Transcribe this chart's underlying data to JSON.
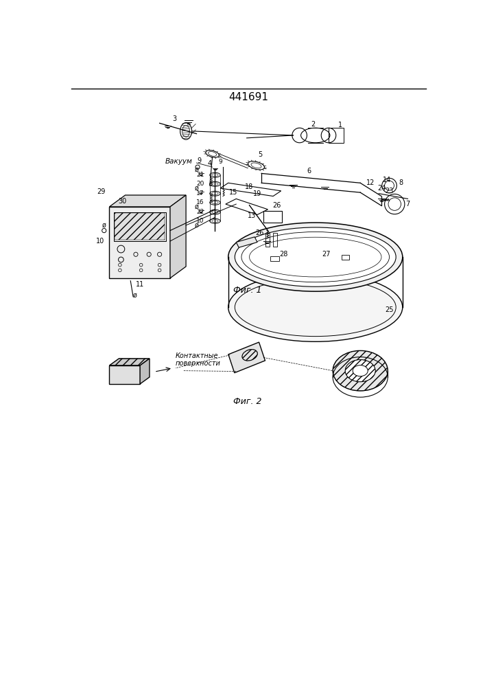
{
  "title": "441691",
  "fig1_caption": "Фиг. 1",
  "fig2_caption": "Фиг. 2",
  "label_vakuum": "Вакуум",
  "label_kontakt": "Контактные\nповерхности",
  "background_color": "#ffffff",
  "line_color": "#000000",
  "title_fontsize": 11,
  "caption_fontsize": 9,
  "label_fontsize": 7.5
}
